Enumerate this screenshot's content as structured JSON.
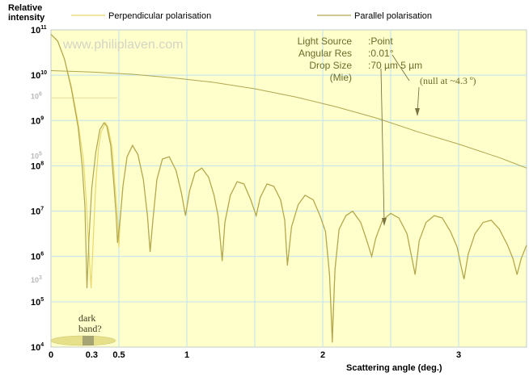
{
  "chart_data": {
    "type": "line",
    "ylabel": "Relative intensity",
    "xlabel": "Scattering angle (deg.)",
    "x_ticks": [
      "0",
      "0.3",
      "0.5",
      "1",
      "2",
      "3"
    ],
    "x_tick_values": [
      0,
      0.3,
      0.5,
      1,
      2,
      3
    ],
    "xlim": [
      0,
      3.5
    ],
    "y_scale": "log",
    "y_major_labels": [
      {
        "base": "10",
        "exp": "11",
        "value": 11
      },
      {
        "base": "10",
        "exp": "10",
        "value": 10
      },
      {
        "base": "10",
        "exp": "9",
        "value": 9
      },
      {
        "base": "10",
        "exp": "8",
        "value": 8
      },
      {
        "base": "10",
        "exp": "7",
        "value": 7
      },
      {
        "base": "10",
        "exp": "6",
        "value": 6
      },
      {
        "base": "10",
        "exp": "5",
        "value": 5
      },
      {
        "base": "10",
        "exp": "4",
        "value": 4
      }
    ],
    "y_faint_labels": [
      {
        "base": "10",
        "exp": "6",
        "value": 9.55
      },
      {
        "base": "10",
        "exp": "5",
        "value": 8.23
      },
      {
        "base": "10",
        "exp": "3",
        "value": 5.5
      }
    ],
    "ylim": [
      4,
      11
    ],
    "series": [
      {
        "name": "Perpendicular polarisation",
        "color": "#e8d86a",
        "points": [
          [
            0.0,
            10.9
          ],
          [
            0.05,
            10.75
          ],
          [
            0.1,
            10.35
          ],
          [
            0.15,
            9.75
          ],
          [
            0.2,
            8.95
          ],
          [
            0.24,
            8.1
          ],
          [
            0.26,
            7.2
          ],
          [
            0.28,
            6.1
          ],
          [
            0.295,
            5.3
          ],
          [
            0.31,
            6.3
          ],
          [
            0.33,
            7.6
          ],
          [
            0.35,
            8.4
          ],
          [
            0.37,
            8.75
          ],
          [
            0.4,
            8.95
          ],
          [
            0.42,
            8.85
          ],
          [
            0.45,
            8.4
          ],
          [
            0.47,
            7.6
          ],
          [
            0.49,
            6.9
          ],
          [
            0.5,
            6.2
          ],
          [
            0.51,
            6.85
          ],
          [
            0.53,
            7.55
          ],
          [
            0.56,
            8.2
          ],
          [
            0.6,
            8.45
          ],
          [
            0.64,
            8.25
          ],
          [
            0.68,
            7.7
          ],
          [
            0.71,
            6.9
          ],
          [
            0.73,
            6.1
          ],
          [
            0.75,
            6.8
          ],
          [
            0.78,
            7.7
          ],
          [
            0.82,
            8.15
          ],
          [
            0.87,
            8.2
          ],
          [
            0.92,
            7.9
          ],
          [
            0.96,
            7.4
          ],
          [
            0.99,
            6.9
          ],
          [
            1.02,
            7.45
          ],
          [
            1.06,
            7.85
          ],
          [
            1.11,
            7.95
          ],
          [
            1.16,
            7.75
          ],
          [
            1.2,
            7.35
          ],
          [
            1.23,
            6.9
          ],
          [
            1.26,
            5.9
          ],
          [
            1.28,
            6.75
          ],
          [
            1.32,
            7.35
          ],
          [
            1.37,
            7.65
          ],
          [
            1.42,
            7.6
          ],
          [
            1.47,
            7.25
          ],
          [
            1.51,
            6.9
          ],
          [
            1.54,
            7.3
          ],
          [
            1.59,
            7.6
          ],
          [
            1.64,
            7.55
          ],
          [
            1.69,
            7.25
          ],
          [
            1.72,
            6.8
          ],
          [
            1.74,
            5.8
          ],
          [
            1.77,
            6.65
          ],
          [
            1.82,
            7.15
          ],
          [
            1.87,
            7.35
          ],
          [
            1.93,
            7.25
          ],
          [
            1.98,
            6.9
          ],
          [
            2.02,
            6.55
          ],
          [
            2.05,
            5.6
          ],
          [
            2.07,
            4.3
          ],
          [
            2.09,
            5.7
          ],
          [
            2.12,
            6.6
          ],
          [
            2.17,
            6.9
          ],
          [
            2.22,
            7.0
          ],
          [
            2.28,
            6.75
          ],
          [
            2.33,
            6.3
          ],
          [
            2.36,
            6.0
          ],
          [
            2.39,
            6.4
          ],
          [
            2.44,
            6.8
          ],
          [
            2.5,
            6.95
          ],
          [
            2.56,
            6.85
          ],
          [
            2.62,
            6.5
          ],
          [
            2.66,
            5.9
          ],
          [
            2.68,
            5.6
          ],
          [
            2.71,
            6.35
          ],
          [
            2.76,
            6.75
          ],
          [
            2.82,
            6.9
          ],
          [
            2.88,
            6.85
          ],
          [
            2.94,
            6.55
          ],
          [
            2.99,
            6.2
          ],
          [
            3.02,
            5.75
          ],
          [
            3.04,
            5.5
          ],
          [
            3.07,
            6.05
          ],
          [
            3.12,
            6.5
          ],
          [
            3.18,
            6.75
          ],
          [
            3.24,
            6.8
          ],
          [
            3.3,
            6.6
          ],
          [
            3.36,
            6.25
          ],
          [
            3.4,
            5.95
          ],
          [
            3.43,
            5.6
          ],
          [
            3.46,
            5.95
          ],
          [
            3.5,
            6.25
          ]
        ]
      },
      {
        "name": "Parallel polarisation",
        "color": "#b0a650",
        "points": [
          [
            0.0,
            10.9
          ],
          [
            0.05,
            10.75
          ],
          [
            0.1,
            10.35
          ],
          [
            0.15,
            9.7
          ],
          [
            0.2,
            8.85
          ],
          [
            0.23,
            8.0
          ],
          [
            0.25,
            7.1
          ],
          [
            0.265,
            5.3
          ],
          [
            0.28,
            6.4
          ],
          [
            0.3,
            7.5
          ],
          [
            0.33,
            8.3
          ],
          [
            0.36,
            8.8
          ],
          [
            0.39,
            8.95
          ],
          [
            0.41,
            8.88
          ],
          [
            0.44,
            8.45
          ],
          [
            0.46,
            7.7
          ],
          [
            0.48,
            6.9
          ],
          [
            0.49,
            6.3
          ],
          [
            0.51,
            6.85
          ],
          [
            0.53,
            7.55
          ],
          [
            0.56,
            8.2
          ],
          [
            0.6,
            8.45
          ],
          [
            0.64,
            8.25
          ],
          [
            0.68,
            7.7
          ],
          [
            0.71,
            6.9
          ],
          [
            0.73,
            6.1
          ],
          [
            0.75,
            6.8
          ],
          [
            0.78,
            7.7
          ],
          [
            0.82,
            8.15
          ],
          [
            0.87,
            8.2
          ],
          [
            0.92,
            7.9
          ],
          [
            0.96,
            7.4
          ],
          [
            0.99,
            6.9
          ],
          [
            1.02,
            7.45
          ],
          [
            1.06,
            7.85
          ],
          [
            1.11,
            7.95
          ],
          [
            1.16,
            7.75
          ],
          [
            1.2,
            7.35
          ],
          [
            1.23,
            6.9
          ],
          [
            1.26,
            5.9
          ],
          [
            1.28,
            6.75
          ],
          [
            1.32,
            7.35
          ],
          [
            1.37,
            7.65
          ],
          [
            1.42,
            7.6
          ],
          [
            1.47,
            7.25
          ],
          [
            1.51,
            6.9
          ],
          [
            1.54,
            7.3
          ],
          [
            1.59,
            7.6
          ],
          [
            1.64,
            7.55
          ],
          [
            1.69,
            7.25
          ],
          [
            1.72,
            6.8
          ],
          [
            1.74,
            5.8
          ],
          [
            1.77,
            6.65
          ],
          [
            1.82,
            7.15
          ],
          [
            1.87,
            7.35
          ],
          [
            1.93,
            7.25
          ],
          [
            1.98,
            6.9
          ],
          [
            2.02,
            6.55
          ],
          [
            2.05,
            5.6
          ],
          [
            2.07,
            4.1
          ],
          [
            2.09,
            5.7
          ],
          [
            2.12,
            6.6
          ],
          [
            2.17,
            6.9
          ],
          [
            2.22,
            7.0
          ],
          [
            2.28,
            6.75
          ],
          [
            2.33,
            6.3
          ],
          [
            2.36,
            6.0
          ],
          [
            2.39,
            6.4
          ],
          [
            2.44,
            6.8
          ],
          [
            2.5,
            6.95
          ],
          [
            2.56,
            6.85
          ],
          [
            2.62,
            6.5
          ],
          [
            2.66,
            5.9
          ],
          [
            2.68,
            5.6
          ],
          [
            2.71,
            6.35
          ],
          [
            2.76,
            6.75
          ],
          [
            2.82,
            6.9
          ],
          [
            2.88,
            6.85
          ],
          [
            2.94,
            6.55
          ],
          [
            2.99,
            6.2
          ],
          [
            3.02,
            5.75
          ],
          [
            3.04,
            5.5
          ],
          [
            3.07,
            6.05
          ],
          [
            3.12,
            6.5
          ],
          [
            3.18,
            6.75
          ],
          [
            3.24,
            6.8
          ],
          [
            3.3,
            6.6
          ],
          [
            3.36,
            6.25
          ],
          [
            3.4,
            5.95
          ],
          [
            3.43,
            5.6
          ],
          [
            3.46,
            5.95
          ],
          [
            3.5,
            6.25
          ]
        ]
      },
      {
        "name": "5 µm drop",
        "color": "#b0a650",
        "points": [
          [
            0.0,
            10.1
          ],
          [
            0.3,
            10.07
          ],
          [
            0.6,
            10.02
          ],
          [
            0.9,
            9.94
          ],
          [
            1.2,
            9.84
          ],
          [
            1.5,
            9.7
          ],
          [
            1.8,
            9.52
          ],
          [
            2.1,
            9.3
          ],
          [
            2.4,
            9.05
          ],
          [
            2.7,
            8.75
          ],
          [
            3.0,
            8.48
          ],
          [
            3.3,
            8.18
          ],
          [
            3.5,
            7.95
          ]
        ]
      }
    ],
    "legend": [
      "Perpendicular polarisation",
      "Parallel polarisation"
    ],
    "legend_placement": "top",
    "grid": true
  },
  "watermark": "www.philiplaven.com",
  "info": {
    "rows": [
      {
        "label": "Light Source",
        "value": ":Point"
      },
      {
        "label": "Angular Res",
        "value": ":0.01°"
      },
      {
        "label": "Drop Size",
        "value": ":70 µm   5 µm"
      },
      {
        "label": "(Mie)",
        "value": ""
      }
    ]
  },
  "annotations": {
    "null_note": "(null at ~4.3 º)",
    "dark_band_line1": "dark",
    "dark_band_line2": "band?"
  },
  "colors": {
    "plot_background": "#ffffcc",
    "grid": "#bfe3ee",
    "perpendicular": "#e8d86a",
    "parallel": "#b0a650"
  }
}
